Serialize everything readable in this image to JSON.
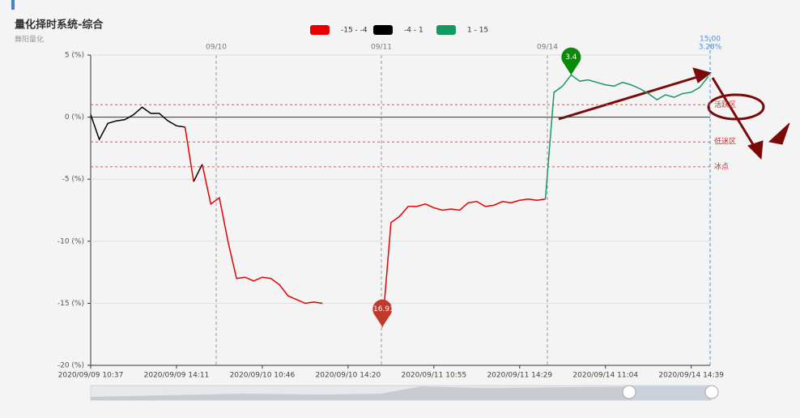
{
  "chart_data": {
    "type": "line",
    "title": "量化择时系统-综合",
    "subtitle": "舞阳量化",
    "pieces": [
      {
        "label": "-15 - -4",
        "min": -15,
        "max": -4,
        "color": "#e60000"
      },
      {
        "label": "-4 - 1",
        "min": -4,
        "max": 1,
        "color": "#000000"
      },
      {
        "label": "1 - 15",
        "min": 1,
        "max": 15,
        "color": "#139a63"
      }
    ],
    "categories": [
      "2020/09/09 10:37",
      null,
      null,
      null,
      null,
      null,
      null,
      null,
      null,
      null,
      "2020/09/09 14:11",
      null,
      null,
      null,
      null,
      null,
      null,
      null,
      null,
      null,
      "2020/09/10 10:46",
      null,
      null,
      null,
      null,
      null,
      null,
      null,
      null,
      null,
      "2020/09/10 14:20",
      null,
      null,
      null,
      null,
      null,
      null,
      null,
      null,
      null,
      "2020/09/11 10:55",
      null,
      null,
      null,
      null,
      null,
      null,
      null,
      null,
      null,
      "2020/09/11 14:29",
      null,
      null,
      null,
      null,
      null,
      null,
      null,
      null,
      null,
      "2020/09/14 11:04",
      null,
      null,
      null,
      null,
      null,
      null,
      null,
      null,
      null,
      "2020/09/14 14:39",
      null,
      null
    ],
    "values": [
      0.2,
      -1.8,
      -0.5,
      -0.3,
      -0.2,
      0.2,
      0.8,
      0.3,
      0.3,
      -0.3,
      -0.7,
      -0.8,
      -5.2,
      -3.8,
      -7.0,
      -6.5,
      -10.0,
      -13.0,
      -12.9,
      -13.2,
      -12.9,
      -13.0,
      -13.5,
      -14.4,
      -14.7,
      -15.0,
      -14.9,
      -15.0,
      null,
      null,
      null,
      null,
      null,
      null,
      -16.91,
      -8.5,
      -8.0,
      -7.2,
      -7.2,
      -7.0,
      -7.3,
      -7.5,
      -7.4,
      -7.5,
      -6.9,
      -6.8,
      -7.2,
      -7.1,
      -6.8,
      -6.9,
      -6.7,
      -6.6,
      -6.7,
      -6.6,
      2.0,
      2.5,
      3.4,
      2.9,
      3.0,
      2.8,
      2.6,
      2.5,
      2.8,
      2.6,
      2.3,
      1.9,
      1.4,
      1.8,
      1.6,
      1.9,
      2.0,
      2.4,
      3.28
    ],
    "ylim": [
      -20,
      5
    ],
    "yticks": [
      {
        "value": -20,
        "label": "-20 (%)"
      },
      {
        "value": -15,
        "label": "-15 (%)"
      },
      {
        "value": -10,
        "label": "-10 (%)"
      },
      {
        "value": -5,
        "label": "-5 (%)"
      },
      {
        "value": 0,
        "label": "0 (%)"
      },
      {
        "value": 5,
        "label": "5 (%)"
      }
    ],
    "grid": true,
    "mark_lines": [
      {
        "value": 1,
        "label": "活跃区"
      },
      {
        "value": -2,
        "label": "低迷区"
      },
      {
        "value": -4,
        "label": "冰点"
      }
    ],
    "max_point": 3.4,
    "min_point": -16.91,
    "day_labels": [
      "09/10",
      "09/11",
      "09/14"
    ],
    "end_time": "15:00",
    "end_label": "3.28%"
  }
}
